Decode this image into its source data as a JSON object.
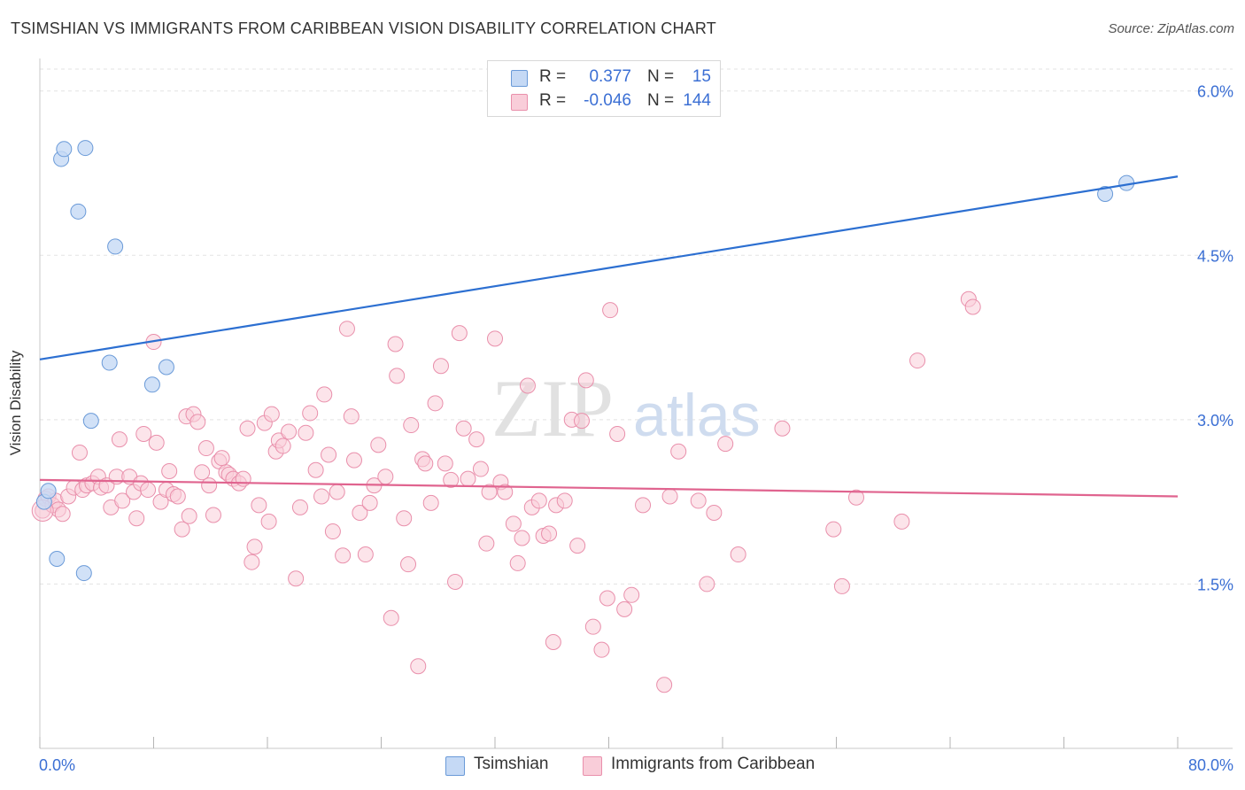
{
  "title": "TSIMSHIAN VS IMMIGRANTS FROM CARIBBEAN VISION DISABILITY CORRELATION CHART",
  "source": "Source: ZipAtlas.com",
  "watermark": {
    "zip": "ZIP",
    "atlas": "atlas"
  },
  "legend": {
    "rows": [
      {
        "r_label": "R =",
        "r_value": "0.377",
        "n_label": "N =",
        "n_value": "15"
      },
      {
        "r_label": "R =",
        "r_value": "-0.046",
        "n_label": "N =",
        "n_value": "144"
      }
    ]
  },
  "colors": {
    "tsimshian_fill": "#c5d9f5",
    "tsimshian_stroke": "#6a9ad8",
    "tsimshian_line": "#2c6fd1",
    "caribbean_fill": "#f9cdd9",
    "caribbean_stroke": "#e98fab",
    "caribbean_line": "#e0648f",
    "tick_label": "#3b6fd4",
    "grid": "#e3e3e3"
  },
  "chart_data": {
    "type": "scatter",
    "title": "TSIMSHIAN VS IMMIGRANTS FROM CARIBBEAN VISION DISABILITY CORRELATION CHART",
    "xlabel": "",
    "ylabel": "Vision Disability",
    "xlim": [
      0,
      80
    ],
    "ylim": [
      0,
      6.2
    ],
    "x_tick_labels": [
      "0.0%",
      "80.0%"
    ],
    "y_ticks": [
      1.5,
      3.0,
      4.5,
      6.0
    ],
    "y_tick_labels": [
      "1.5%",
      "3.0%",
      "4.5%",
      "6.0%"
    ],
    "grid": true,
    "series": [
      {
        "name": "Tsimshian",
        "r": 0.377,
        "n": 15,
        "trend": {
          "x": [
            0,
            80
          ],
          "y": [
            3.55,
            5.22
          ]
        },
        "points": [
          [
            0.3,
            2.25
          ],
          [
            0.6,
            2.35
          ],
          [
            1.5,
            5.38
          ],
          [
            1.7,
            5.47
          ],
          [
            3.2,
            5.48
          ],
          [
            2.7,
            4.9
          ],
          [
            5.3,
            4.58
          ],
          [
            4.9,
            3.52
          ],
          [
            7.9,
            3.32
          ],
          [
            8.9,
            3.48
          ],
          [
            3.6,
            2.99
          ],
          [
            1.2,
            1.73
          ],
          [
            3.1,
            1.6
          ],
          [
            74.9,
            5.06
          ],
          [
            76.4,
            5.16
          ]
        ]
      },
      {
        "name": "Immigrants from Caribbean",
        "r": -0.046,
        "n": 144,
        "trend": {
          "x": [
            0,
            80
          ],
          "y": [
            2.45,
            2.3
          ]
        },
        "points": [
          [
            0.2,
            2.17
          ],
          [
            0.4,
            2.28
          ],
          [
            0.6,
            2.3
          ],
          [
            0.9,
            2.22
          ],
          [
            1.1,
            2.26
          ],
          [
            1.3,
            2.18
          ],
          [
            1.6,
            2.14
          ],
          [
            2.0,
            2.3
          ],
          [
            2.4,
            2.38
          ],
          [
            2.8,
            2.7
          ],
          [
            3.0,
            2.36
          ],
          [
            3.3,
            2.4
          ],
          [
            3.7,
            2.42
          ],
          [
            4.1,
            2.48
          ],
          [
            4.3,
            2.38
          ],
          [
            4.7,
            2.4
          ],
          [
            5.0,
            2.2
          ],
          [
            5.4,
            2.48
          ],
          [
            5.6,
            2.82
          ],
          [
            5.8,
            2.26
          ],
          [
            6.3,
            2.48
          ],
          [
            6.6,
            2.34
          ],
          [
            6.8,
            2.1
          ],
          [
            7.1,
            2.42
          ],
          [
            7.3,
            2.87
          ],
          [
            7.6,
            2.36
          ],
          [
            8.0,
            3.71
          ],
          [
            8.2,
            2.79
          ],
          [
            8.5,
            2.25
          ],
          [
            8.9,
            2.36
          ],
          [
            9.1,
            2.53
          ],
          [
            9.4,
            2.32
          ],
          [
            9.7,
            2.3
          ],
          [
            10.0,
            2.0
          ],
          [
            10.3,
            3.03
          ],
          [
            10.5,
            2.12
          ],
          [
            10.8,
            3.05
          ],
          [
            11.1,
            2.98
          ],
          [
            11.4,
            2.52
          ],
          [
            11.7,
            2.74
          ],
          [
            11.9,
            2.4
          ],
          [
            12.2,
            2.13
          ],
          [
            12.6,
            2.62
          ],
          [
            12.8,
            2.65
          ],
          [
            13.1,
            2.52
          ],
          [
            13.3,
            2.5
          ],
          [
            13.6,
            2.46
          ],
          [
            14.0,
            2.42
          ],
          [
            14.3,
            2.46
          ],
          [
            14.6,
            2.92
          ],
          [
            14.9,
            1.7
          ],
          [
            15.1,
            1.84
          ],
          [
            15.4,
            2.22
          ],
          [
            15.8,
            2.97
          ],
          [
            16.1,
            2.07
          ],
          [
            16.3,
            3.05
          ],
          [
            16.6,
            2.71
          ],
          [
            16.8,
            2.81
          ],
          [
            17.1,
            2.76
          ],
          [
            17.5,
            2.89
          ],
          [
            18.0,
            1.55
          ],
          [
            18.3,
            2.2
          ],
          [
            18.7,
            2.88
          ],
          [
            19.0,
            3.06
          ],
          [
            19.4,
            2.54
          ],
          [
            19.8,
            2.3
          ],
          [
            20.0,
            3.23
          ],
          [
            20.3,
            2.68
          ],
          [
            20.6,
            1.98
          ],
          [
            20.9,
            2.34
          ],
          [
            21.3,
            1.76
          ],
          [
            21.6,
            3.83
          ],
          [
            21.9,
            3.03
          ],
          [
            22.1,
            2.63
          ],
          [
            22.5,
            2.15
          ],
          [
            22.9,
            1.77
          ],
          [
            23.2,
            2.24
          ],
          [
            23.5,
            2.4
          ],
          [
            23.8,
            2.77
          ],
          [
            24.3,
            2.48
          ],
          [
            24.7,
            1.19
          ],
          [
            25.0,
            3.69
          ],
          [
            25.1,
            3.4
          ],
          [
            25.6,
            2.1
          ],
          [
            25.9,
            1.68
          ],
          [
            26.1,
            2.95
          ],
          [
            26.6,
            0.75
          ],
          [
            26.9,
            2.64
          ],
          [
            27.1,
            2.6
          ],
          [
            27.5,
            2.24
          ],
          [
            27.8,
            3.15
          ],
          [
            28.2,
            3.49
          ],
          [
            28.5,
            2.6
          ],
          [
            28.9,
            2.45
          ],
          [
            29.2,
            1.52
          ],
          [
            29.5,
            3.79
          ],
          [
            29.8,
            2.92
          ],
          [
            30.1,
            2.46
          ],
          [
            30.7,
            2.82
          ],
          [
            31.0,
            2.55
          ],
          [
            31.4,
            1.87
          ],
          [
            31.6,
            2.34
          ],
          [
            32.0,
            3.74
          ],
          [
            32.4,
            2.43
          ],
          [
            32.7,
            2.34
          ],
          [
            33.3,
            2.05
          ],
          [
            33.6,
            1.69
          ],
          [
            33.9,
            1.92
          ],
          [
            34.3,
            3.31
          ],
          [
            34.6,
            2.2
          ],
          [
            35.1,
            2.26
          ],
          [
            35.4,
            1.94
          ],
          [
            35.8,
            1.96
          ],
          [
            36.1,
            0.97
          ],
          [
            36.3,
            2.22
          ],
          [
            36.9,
            2.26
          ],
          [
            37.4,
            3.0
          ],
          [
            37.8,
            1.85
          ],
          [
            38.1,
            2.99
          ],
          [
            38.4,
            3.36
          ],
          [
            38.9,
            1.11
          ],
          [
            39.5,
            0.9
          ],
          [
            39.9,
            1.37
          ],
          [
            40.6,
            2.87
          ],
          [
            41.1,
            1.27
          ],
          [
            41.6,
            1.4
          ],
          [
            42.4,
            2.22
          ],
          [
            43.9,
            0.58
          ],
          [
            44.3,
            2.3
          ],
          [
            44.9,
            2.71
          ],
          [
            46.3,
            2.26
          ],
          [
            46.9,
            1.5
          ],
          [
            47.4,
            2.15
          ],
          [
            48.2,
            2.78
          ],
          [
            49.1,
            1.77
          ],
          [
            52.2,
            2.92
          ],
          [
            55.8,
            2.0
          ],
          [
            56.4,
            1.48
          ],
          [
            57.4,
            2.29
          ],
          [
            60.6,
            2.07
          ],
          [
            61.7,
            3.54
          ],
          [
            65.3,
            4.1
          ],
          [
            65.6,
            4.03
          ],
          [
            40.1,
            4.0
          ]
        ]
      }
    ]
  },
  "bottom_legend": [
    {
      "label": "Tsimshian"
    },
    {
      "label": "Immigrants from Caribbean"
    }
  ]
}
